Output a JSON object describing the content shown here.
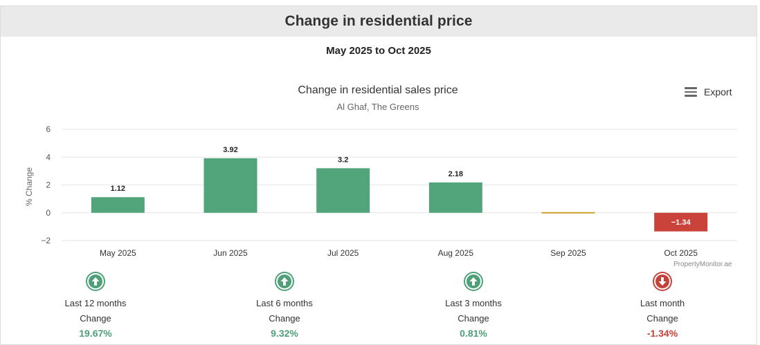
{
  "header": {
    "title": "Change in residential price"
  },
  "period": "May 2025 to Oct 2025",
  "export_label": "Export",
  "credit": "PropertyMonitor.ae",
  "colors": {
    "positive": "#52a47b",
    "negative": "#c9433a",
    "neutral": "#c9a227",
    "grid": "#e6e6e6"
  },
  "chart_data": {
    "type": "bar",
    "title": "Change in residential sales price",
    "subtitle": "Al Ghaf, The Greens",
    "xlabel": "",
    "ylabel": "% Change",
    "categories": [
      "May 2025",
      "Jun 2025",
      "Jul 2025",
      "Aug 2025",
      "Sep 2025",
      "Oct 2025"
    ],
    "values": [
      1.12,
      3.92,
      3.2,
      2.18,
      0.05,
      -1.34
    ],
    "data_labels": [
      "1.12",
      "3.92",
      "3.2",
      "2.18",
      "",
      "−1.34"
    ],
    "y_ticks": [
      6,
      4,
      2,
      0,
      -2
    ],
    "y_tick_labels": [
      "6",
      "4",
      "2",
      "0",
      "−2"
    ],
    "ylim": [
      -2,
      6
    ],
    "grid": true,
    "legend": "none"
  },
  "summary": [
    {
      "period": "Last 12 months",
      "label": "Change",
      "value": "19.67%",
      "direction": "up",
      "icon": "arrow-up-circle-icon"
    },
    {
      "period": "Last 6 months",
      "label": "Change",
      "value": "9.32%",
      "direction": "up",
      "icon": "arrow-up-circle-icon"
    },
    {
      "period": "Last 3 months",
      "label": "Change",
      "value": "0.81%",
      "direction": "up",
      "icon": "arrow-up-circle-icon"
    },
    {
      "period": "Last month",
      "label": "Change",
      "value": "-1.34%",
      "direction": "down",
      "icon": "arrow-down-circle-icon"
    }
  ]
}
